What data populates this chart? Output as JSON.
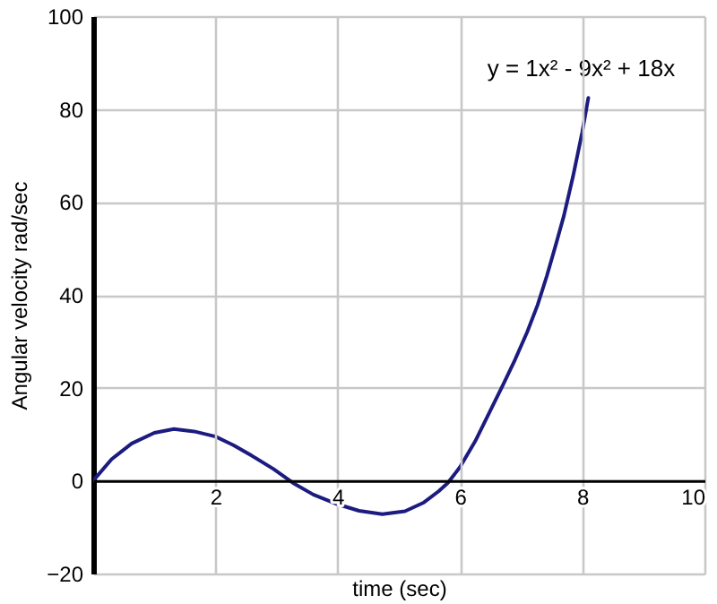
{
  "chart_data": {
    "type": "line",
    "xlabel": "time (sec)",
    "ylabel": "Angular velocity rad/sec",
    "x": [
      0,
      0.3,
      0.63,
      1.0,
      1.32,
      1.65,
      2.0,
      2.3,
      2.59,
      2.95,
      3.27,
      3.6,
      4.0,
      4.35,
      4.73,
      5.1,
      5.41,
      5.65,
      5.8,
      6.0,
      6.25,
      6.49,
      6.7,
      6.9,
      7.1,
      7.27,
      7.42,
      7.56,
      7.7,
      7.85,
      8.0,
      8.1
    ],
    "series": [
      {
        "color": "#1c1c80",
        "values": [
          0,
          4.6,
          8.0,
          10.3,
          11.1,
          10.6,
          9.5,
          7.6,
          5.4,
          2.5,
          -0.5,
          -3.0,
          -5.1,
          -6.5,
          -7.2,
          -6.6,
          -4.7,
          -2.3,
          -0.5,
          2.9,
          8.5,
          14.9,
          20.5,
          26.0,
          32.0,
          37.8,
          44.0,
          50.4,
          57.0,
          65.5,
          75.0,
          82.4
        ]
      }
    ],
    "annotations": [
      {
        "text": "y = 1x² - 9x² + 18x",
        "x": 8.1,
        "y": 82.4
      }
    ],
    "xlim": [
      0,
      10
    ],
    "xticks": [
      2,
      4,
      6,
      8,
      10
    ],
    "ylim": [
      -20,
      100
    ],
    "yticks": [
      -20,
      0,
      20,
      40,
      60,
      80,
      100
    ],
    "grid": true,
    "marker": "none",
    "line_style": "solid"
  }
}
